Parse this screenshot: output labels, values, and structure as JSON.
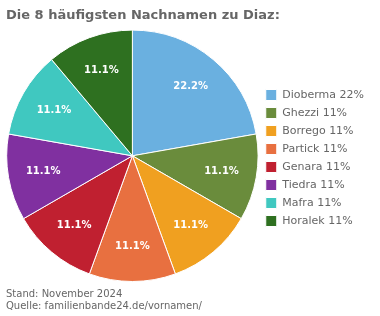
{
  "chart_data": {
    "type": "pie",
    "title": "Die 8 häufigsten Nachnamen zu Diaz:",
    "categories": [
      "Dioberma 22%",
      "Ghezzi 11%",
      "Borrego 11%",
      "Partick 11%",
      "Genara 11%",
      "Tiedra 11%",
      "Mafra 11%",
      "Horalek 11%"
    ],
    "values": [
      22.2,
      11.1,
      11.1,
      11.1,
      11.1,
      11.1,
      11.1,
      11.1
    ],
    "value_labels": [
      "22.2%",
      "11.1%",
      "11.1%",
      "11.1%",
      "11.1%",
      "11.1%",
      "11.1%",
      "11.1%"
    ],
    "colors": [
      "#6ab0e0",
      "#6a8c3c",
      "#f0a020",
      "#e87040",
      "#c02030",
      "#8030a0",
      "#40c8c0",
      "#2e7020"
    ],
    "data_labels": true,
    "legend": "right",
    "annotations": [
      "Stand: November 2024",
      "Quelle: familienbande24.de/vornamen/"
    ]
  }
}
